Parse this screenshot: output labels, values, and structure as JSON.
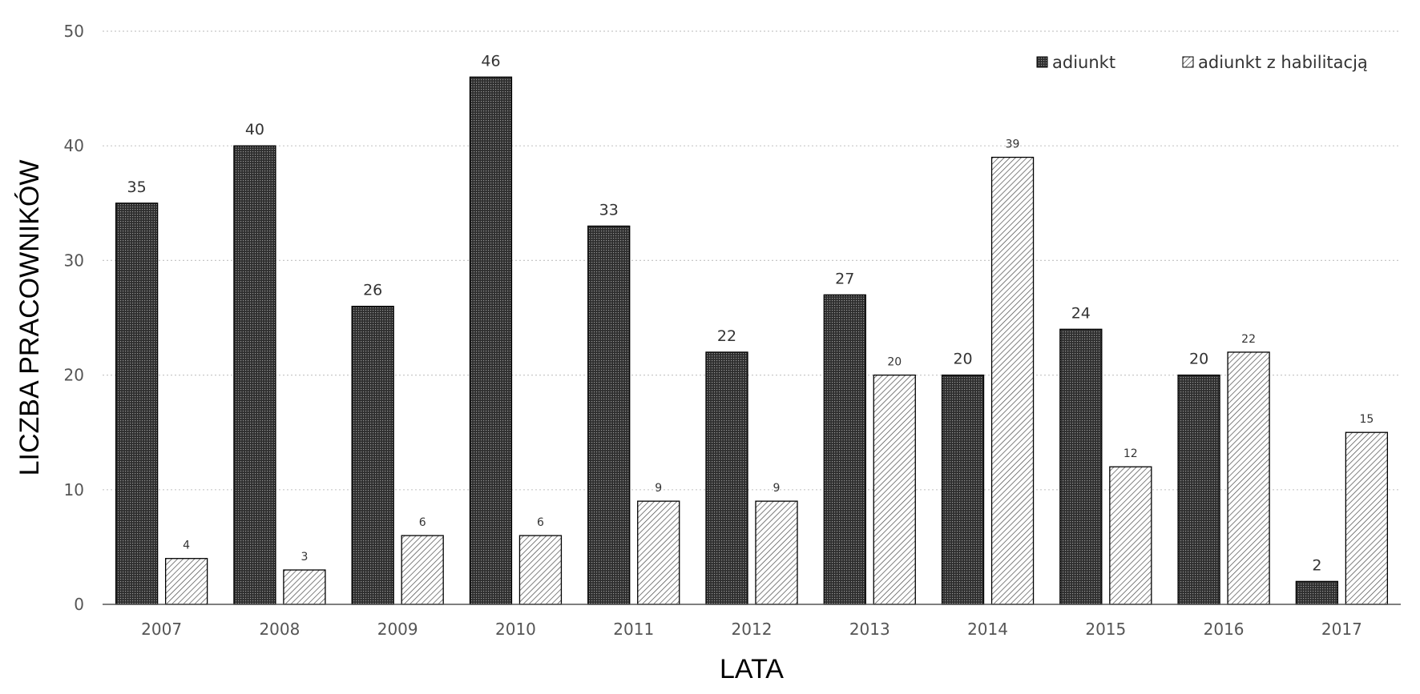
{
  "chart_data": {
    "type": "bar",
    "title": "",
    "xlabel": "LATA",
    "ylabel": "LICZBA PRACOWNIKÓW",
    "ylim": [
      0,
      50
    ],
    "yticks": [
      "0",
      "10",
      "20",
      "30",
      "40",
      "50"
    ],
    "grid": "horizontal dotted",
    "legend_position": "top-right",
    "categories": [
      "2007",
      "2008",
      "2009",
      "2010",
      "2011",
      "2012",
      "2013",
      "2014",
      "2015",
      "2016",
      "2017"
    ],
    "series": [
      {
        "name": "adiunkt",
        "pattern": "dense-dots",
        "values": [
          35,
          40,
          26,
          46,
          33,
          22,
          27,
          20,
          24,
          20,
          2
        ]
      },
      {
        "name": "adiunkt z habilitacją",
        "pattern": "diagonal-hatch",
        "values": [
          4,
          3,
          6,
          6,
          9,
          9,
          20,
          39,
          12,
          22,
          15
        ]
      }
    ]
  },
  "colors": {
    "bar_outline": "#000000",
    "dense_fill": "#3a3a3a",
    "hatch_line": "#555555",
    "grid": "#c8c8c8",
    "tick_text": "#555555"
  }
}
